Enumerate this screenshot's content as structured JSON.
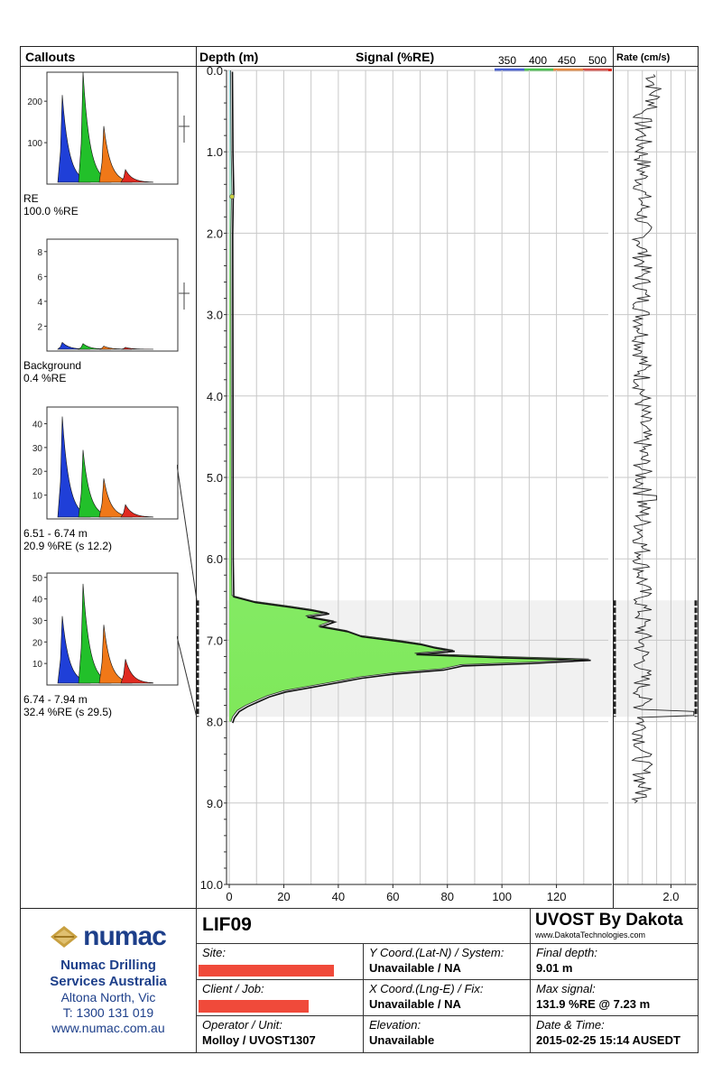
{
  "headers": {
    "callouts": "Callouts",
    "depth": "Depth (m)",
    "signal": "Signal (%RE)",
    "rate": "Rate (cm/s)"
  },
  "legend": {
    "labels": [
      "350",
      "400",
      "450",
      "500"
    ],
    "colors": [
      "#1f3fd8",
      "#22c02a",
      "#f07818",
      "#e02a20"
    ]
  },
  "callouts": [
    {
      "label1": "RE",
      "label2": "100.0 %RE",
      "yticks": [
        100,
        200
      ],
      "ymax": 270,
      "peaks": [
        215,
        270,
        140,
        35
      ]
    },
    {
      "label1": "Background",
      "label2": "0.4 %RE",
      "yticks": [
        2,
        4,
        6,
        8
      ],
      "ymax": 9,
      "peaks": [
        0.7,
        0.6,
        0.4,
        0.3
      ]
    },
    {
      "label1": "6.51 - 6.74 m",
      "label2": "20.9 %RE (s 12.2)",
      "yticks": [
        10,
        20,
        30,
        40
      ],
      "ymax": 47,
      "peaks": [
        43,
        29,
        17,
        6
      ]
    },
    {
      "label1": "6.74 - 7.94 m",
      "label2": "32.4 %RE (s 29.5)",
      "yticks": [
        10,
        20,
        30,
        40,
        50
      ],
      "ymax": 52,
      "peaks": [
        32,
        47,
        28,
        12
      ]
    }
  ],
  "chart_data": {
    "type": "area",
    "title": "Signal (%RE)",
    "xlabel": "Signal (%RE)",
    "ylabel": "Depth (m)",
    "xlim": [
      -1,
      139
    ],
    "ylim": [
      0,
      10
    ],
    "xticks": [
      0,
      20,
      40,
      60,
      80,
      100,
      120
    ],
    "yticks": [
      "0.0",
      "1.0",
      "2.0",
      "3.0",
      "4.0",
      "5.0",
      "6.0",
      "7.0",
      "8.0",
      "9.0",
      "10.0"
    ],
    "highlight_range": [
      6.51,
      7.94
    ],
    "signal": {
      "depth": [
        0.0,
        1.0,
        1.5,
        1.55,
        2.0,
        6.0,
        6.45,
        6.52,
        6.58,
        6.62,
        6.66,
        6.7,
        6.76,
        6.82,
        6.88,
        6.94,
        7.0,
        7.04,
        7.08,
        7.12,
        7.16,
        7.2,
        7.23,
        7.27,
        7.3,
        7.35,
        7.4,
        7.45,
        7.5,
        7.56,
        7.62,
        7.68,
        7.74,
        7.8,
        7.86,
        7.94,
        8.0
      ],
      "value": [
        0.5,
        0.7,
        1.0,
        0.8,
        0.6,
        0.8,
        1.0,
        9,
        22,
        30,
        36,
        28,
        38,
        33,
        43,
        48,
        62,
        70,
        75,
        82,
        68,
        100,
        131.9,
        110,
        85,
        78,
        60,
        48,
        40,
        30,
        20,
        14,
        10,
        6,
        3,
        1.2,
        0.6
      ]
    },
    "rate": {
      "xlim": [
        0,
        2.9
      ],
      "xticks": [
        "2.0"
      ],
      "max_depth": 9.01
    }
  },
  "footer": {
    "company_logo": "numac",
    "company_lines": [
      "Numac Drilling",
      "Services Australia"
    ],
    "address": "Altona North, Vic",
    "phone": "T: 1300 131 019",
    "website": "www.numac.com.au",
    "log_id": "LIF09",
    "brand_title": "UVOST By Dakota",
    "brand_url": "www.DakotaTechnologies.com",
    "site_label": "Site:",
    "ycoord_label": "Y Coord.(Lat-N) / System:",
    "ycoord_value": "Unavailable / NA",
    "final_depth_label": "Final depth:",
    "final_depth_value": "9.01 m",
    "client_label": "Client / Job:",
    "xcoord_label": "X Coord.(Lng-E) / Fix:",
    "xcoord_value": "Unavailable / NA",
    "max_signal_label": "Max signal:",
    "max_signal_value": "131.9 %RE @ 7.23 m",
    "operator_label": "Operator / Unit:",
    "operator_value": "Molloy / UVOST1307",
    "elevation_label": "Elevation:",
    "elevation_value": "Unavailable",
    "datetime_label": "Date & Time:",
    "datetime_value": "2015-02-25 15:14 AUSEDT"
  }
}
